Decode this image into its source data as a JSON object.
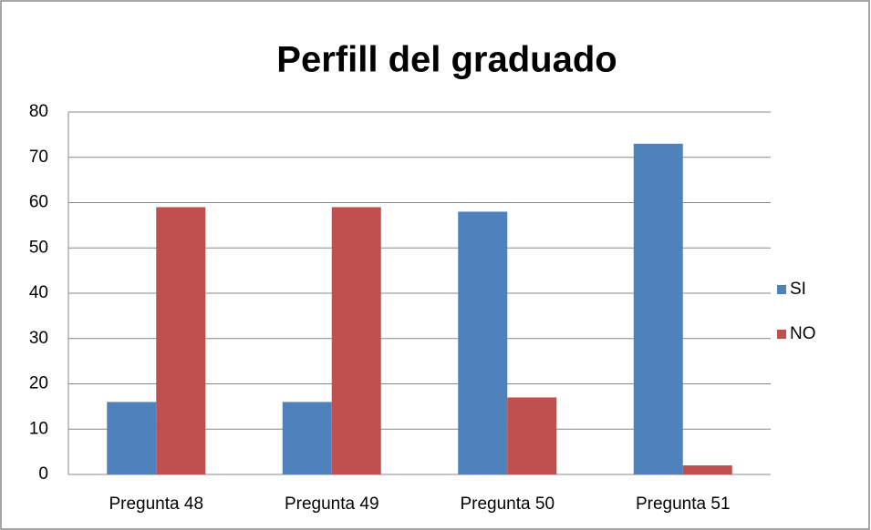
{
  "chart_data": {
    "type": "bar",
    "title": "Perfill del graduado",
    "categories": [
      "Pregunta 48",
      "Pregunta 49",
      "Pregunta 50",
      "Pregunta 51"
    ],
    "series": [
      {
        "name": "SI",
        "color": "#4f81bd",
        "values": [
          16,
          16,
          58,
          73
        ]
      },
      {
        "name": "NO",
        "color": "#c0504d",
        "values": [
          59,
          59,
          17,
          2
        ]
      }
    ],
    "ylim": [
      0,
      80
    ],
    "yticks": [
      0,
      10,
      20,
      30,
      40,
      50,
      60,
      70,
      80
    ],
    "grid": true,
    "legend": "right"
  }
}
